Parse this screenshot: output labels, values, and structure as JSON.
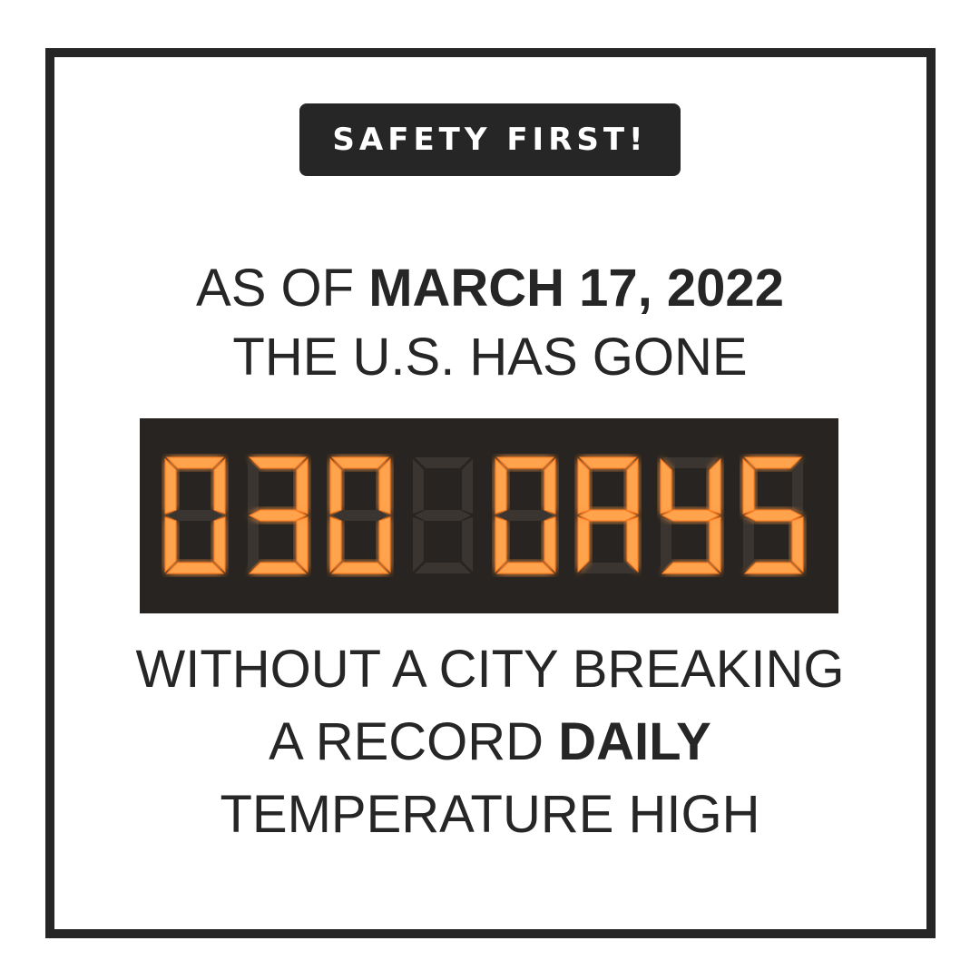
{
  "badge": {
    "label": "SAFETY FIRST!"
  },
  "headline": {
    "line1_prefix": "AS OF ",
    "line1_date": "MARCH 17, 2022",
    "line2": "THE U.S. HAS GONE",
    "line3": "WITHOUT A CITY BREAKING",
    "line4_prefix": "A RECORD ",
    "line4_emphasis": "DAILY",
    "line5": "TEMPERATURE HIGH"
  },
  "counter": {
    "text": "030 DAYS",
    "days": 30,
    "units": "DAYS",
    "glyphs": [
      "0",
      "3",
      "0",
      " ",
      "D",
      "A",
      "Y",
      "S"
    ]
  },
  "colors": {
    "ink": "#262626",
    "display_bg": "#272421",
    "segment_on": "#ffa34d",
    "segment_glow": "#ff7a1a",
    "segment_off": "#3a3530"
  }
}
